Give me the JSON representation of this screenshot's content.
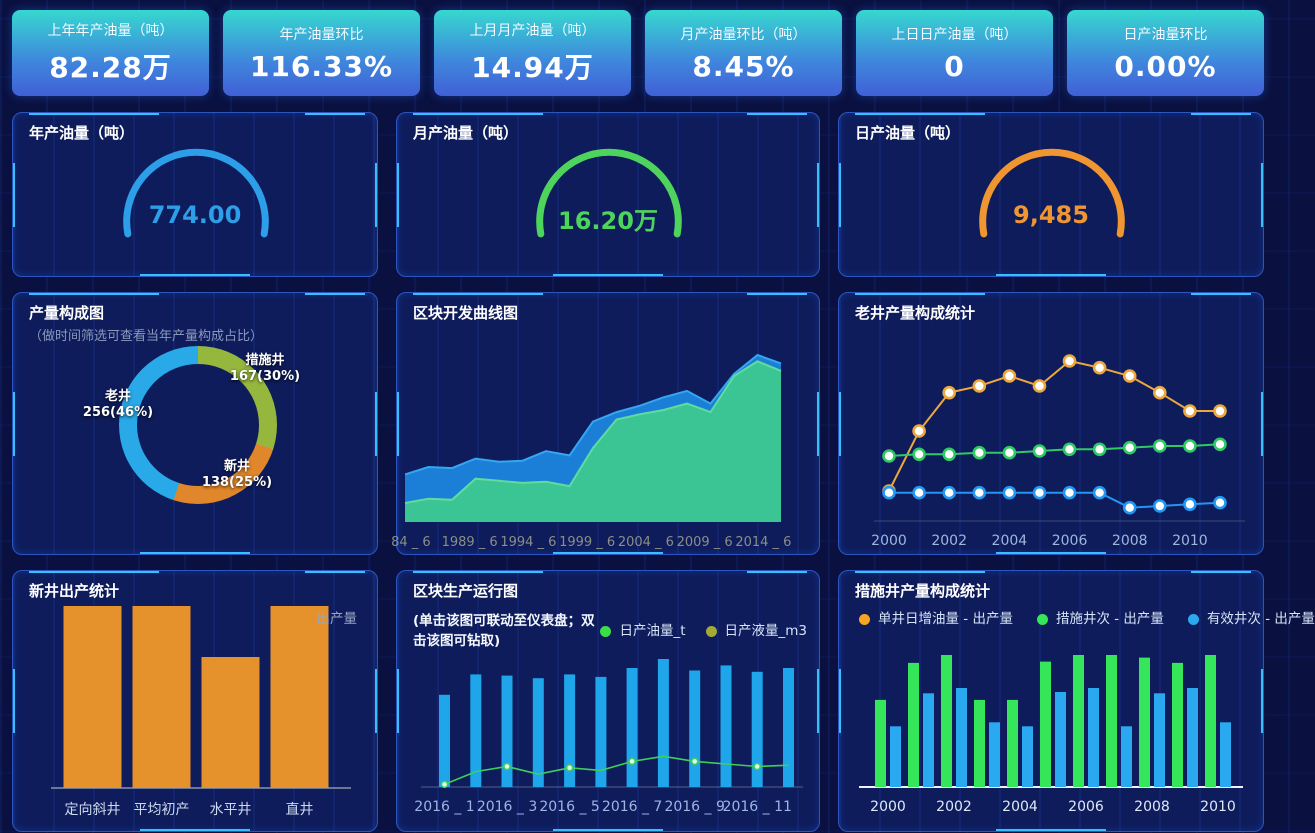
{
  "kpi_cards": [
    {
      "label": "上年年产油量（吨）",
      "value": "82.28万"
    },
    {
      "label": "年产油量环比",
      "value": "116.33%"
    },
    {
      "label": "上月月产油量（吨）",
      "value": "14.94万"
    },
    {
      "label": "月产油量环比（吨）",
      "value": "8.45%"
    },
    {
      "label": "上日日产油量（吨）",
      "value": "0"
    },
    {
      "label": "日产油量环比",
      "value": "0.00%"
    }
  ],
  "panels": {
    "composition": {
      "subtitle": "（做时间筛选可查看当年产量构成占比）"
    },
    "new_well": {
      "legend": "出产量"
    },
    "block_run": {
      "subtitle": "(单击该图可联动至仪表盘；双击该图可钻取)",
      "legend": [
        {
          "label": "日产油量_t",
          "color": "#3adf46"
        },
        {
          "label": "日产液量_m3",
          "color": "#a3aa33"
        }
      ]
    },
    "measure_well": {
      "legend": [
        {
          "label": "单井日增油量 - 出产量",
          "color": "#f5a623"
        },
        {
          "label": "措施井次 - 出产量",
          "color": "#35e55a"
        },
        {
          "label": "有效井次 - 出产量",
          "color": "#2aa8f0"
        }
      ]
    }
  },
  "chart_data": [
    {
      "id": "annual-oil-gauge",
      "type": "gauge",
      "title": "年产油量（吨）",
      "value": "774.00",
      "color": "#2d9fe8"
    },
    {
      "id": "monthly-oil-gauge",
      "type": "gauge",
      "title": "月产油量（吨）",
      "value": "16.20万",
      "color": "#4ed45c"
    },
    {
      "id": "daily-oil-gauge",
      "type": "gauge",
      "title": "日产油量（吨）",
      "value": "9,485",
      "color": "#ef9630"
    },
    {
      "id": "production-composition-donut",
      "type": "pie",
      "title": "产量构成图",
      "slices": [
        {
          "label": "措施井",
          "display": "167(30%)",
          "value": 167,
          "pct": 30,
          "color": "#96b73e"
        },
        {
          "label": "新井",
          "display": "138(25%)",
          "value": 138,
          "pct": 25,
          "color": "#e0872b"
        },
        {
          "label": "老井",
          "display": "256(46%)",
          "value": 256,
          "pct": 46,
          "color": "#29a9e8"
        }
      ]
    },
    {
      "id": "block-development-curve",
      "type": "area",
      "title": "区块开发曲线图",
      "x": [
        1984,
        1986,
        1988,
        1990,
        1992,
        1994,
        1996,
        1998,
        2000,
        2002,
        2004,
        2006,
        2008,
        2010,
        2012,
        2014,
        2016
      ],
      "tick_x": [
        1984.5,
        1989.5,
        1994.5,
        1999.5,
        2004.5,
        2009.5,
        2014.5
      ],
      "tick_labels": [
        "84 _ 6",
        "1989 _ 6",
        "1994 _ 6",
        "1999 _ 6",
        "2004 _ 6",
        "2009 _ 6",
        "2014 _ 6"
      ],
      "series": [
        {
          "color": "#1b7fd8",
          "edge": "#35a6f0",
          "opacity": 1,
          "values": [
            45,
            52,
            51,
            60,
            57,
            58,
            67,
            63,
            95,
            104,
            110,
            118,
            124,
            112,
            140,
            158,
            150
          ]
        },
        {
          "color": "#3dc98e",
          "edge": "#63e09c",
          "opacity": 0.93,
          "values": [
            18,
            22,
            21,
            41,
            39,
            37,
            38,
            34,
            70,
            97,
            102,
            106,
            112,
            104,
            138,
            152,
            143
          ]
        }
      ]
    },
    {
      "id": "old-well-composition",
      "type": "line",
      "title": "老井产量构成统计",
      "x": [
        2000,
        2001,
        2002,
        2003,
        2004,
        2005,
        2006,
        2007,
        2008,
        2009,
        2010,
        2011
      ],
      "tick_labels": [
        "2000",
        "2002",
        "2004",
        "2006",
        "2008",
        "2010"
      ],
      "series": [
        {
          "color": "#eda73c",
          "values": [
            18,
            54,
            77,
            81,
            87,
            81,
            96,
            92,
            87,
            77,
            66,
            66
          ]
        },
        {
          "color": "#2ecb62",
          "values": [
            39,
            40,
            40,
            41,
            41,
            42,
            43,
            43,
            44,
            45,
            45,
            46
          ]
        },
        {
          "color": "#2196f3",
          "values": [
            17,
            17,
            17,
            17,
            17,
            17,
            17,
            17,
            8,
            9,
            10,
            11
          ]
        }
      ]
    },
    {
      "id": "new-well-output",
      "type": "bar",
      "title": "新井出产统计",
      "color": "#e5922c",
      "categories": [
        "定向斜井",
        "平均初产",
        "水平井",
        "直井"
      ],
      "values": [
        100,
        100,
        72,
        100
      ]
    },
    {
      "id": "block-production-run",
      "type": "bar-line",
      "title": "区块生产运行图",
      "tick_labels": [
        "2016 _ 1",
        "2016 _ 3",
        "2016 _ 5",
        "2016 _ 7",
        "2016 _ 9",
        "2016 _ 11"
      ],
      "bar_color": "#1fa6ea",
      "line_color": "#3ecf5a",
      "bars": [
        72,
        88,
        87,
        85,
        88,
        86,
        93,
        100,
        91,
        95,
        90,
        93
      ],
      "line": [
        2,
        12,
        16,
        10,
        15,
        13,
        20,
        24,
        20,
        18,
        16,
        17
      ]
    },
    {
      "id": "measure-well-composition",
      "type": "grouped-bar",
      "title": "措施井产量构成统计",
      "x": [
        2000,
        2001,
        2002,
        2003,
        2004,
        2005,
        2006,
        2007,
        2008,
        2009,
        2010
      ],
      "tick_labels": [
        "2000",
        "2002",
        "2004",
        "2006",
        "2008",
        "2010"
      ],
      "series": [
        {
          "name": "措施井次 - 出产量",
          "color": "#35e55a",
          "values": [
            66,
            94,
            100,
            66,
            66,
            95,
            100,
            100,
            98,
            94,
            100
          ]
        },
        {
          "name": "有效井次 - 出产量",
          "color": "#2aa8f0",
          "values": [
            46,
            71,
            75,
            49,
            46,
            72,
            75,
            46,
            71,
            75,
            49
          ]
        }
      ]
    }
  ]
}
